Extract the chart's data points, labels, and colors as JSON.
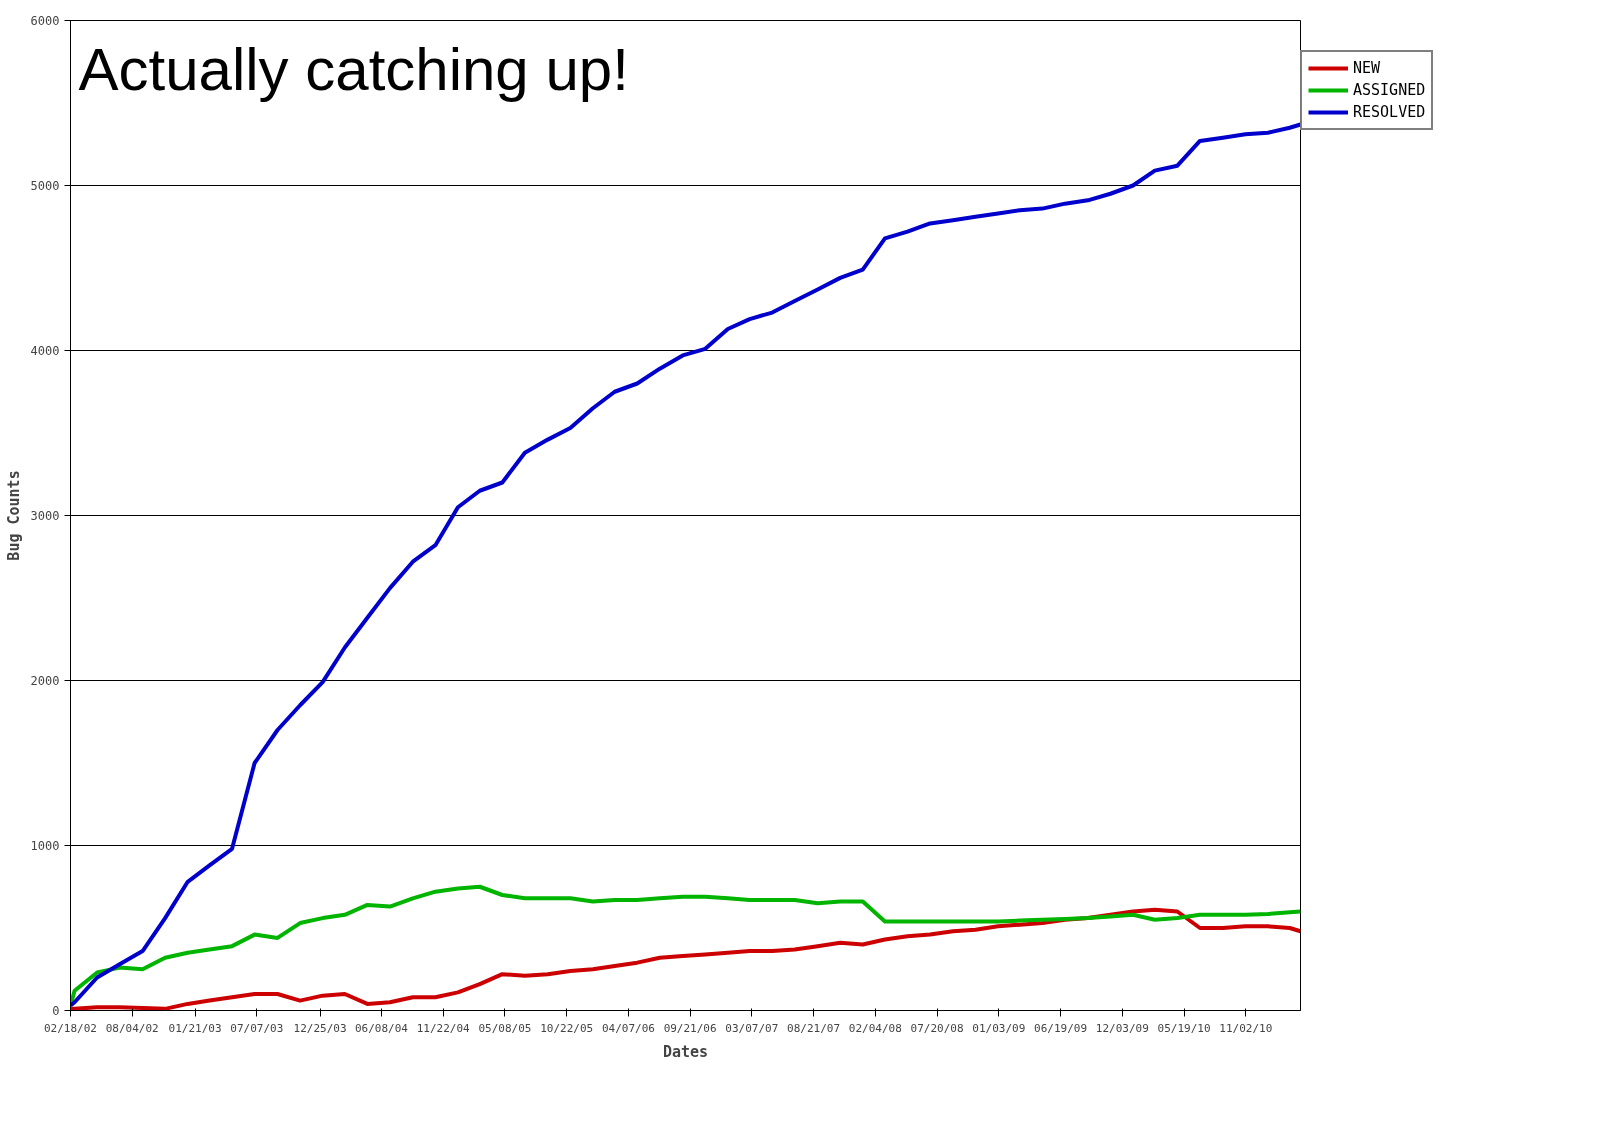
{
  "chart_data": {
    "type": "line",
    "annotations": [
      "Actually catching up!"
    ],
    "xlabel": "Dates",
    "ylabel": "Bug Counts",
    "x": [
      "2002-02-18",
      "2002-03",
      "2002-05",
      "2002-07",
      "2002-09",
      "2002-11",
      "2003-01",
      "2003-03",
      "2003-05",
      "2003-07",
      "2003-09",
      "2003-11",
      "2004-01",
      "2004-03",
      "2004-05",
      "2004-07",
      "2004-09",
      "2004-11",
      "2005-01",
      "2005-03",
      "2005-05",
      "2005-07",
      "2005-09",
      "2005-11",
      "2006-01",
      "2006-03",
      "2006-05",
      "2006-07",
      "2006-09",
      "2006-11",
      "2007-01",
      "2007-03",
      "2007-05",
      "2007-07",
      "2007-09",
      "2007-11",
      "2008-01",
      "2008-03",
      "2008-05",
      "2008-07",
      "2008-09",
      "2008-11",
      "2009-01",
      "2009-03",
      "2009-05",
      "2009-07",
      "2009-09",
      "2009-11",
      "2010-01",
      "2010-03",
      "2010-05",
      "2010-07",
      "2010-09",
      "2010-11",
      "2011-01",
      "2011-03",
      "2011-03-30"
    ],
    "series": [
      {
        "name": "NEW",
        "color": "#cc0000",
        "values": [
          10,
          10,
          20,
          20,
          15,
          10,
          40,
          60,
          80,
          100,
          100,
          60,
          90,
          100,
          40,
          50,
          80,
          80,
          110,
          160,
          220,
          210,
          220,
          240,
          250,
          270,
          290,
          320,
          330,
          340,
          350,
          360,
          360,
          370,
          390,
          410,
          400,
          430,
          450,
          460,
          480,
          490,
          510,
          520,
          530,
          550,
          560,
          580,
          600,
          610,
          600,
          500,
          500,
          510,
          510,
          500,
          480
        ]
      },
      {
        "name": "ASSIGNED",
        "color": "#00b400",
        "values": [
          30,
          120,
          230,
          260,
          250,
          320,
          350,
          370,
          390,
          460,
          440,
          530,
          560,
          580,
          640,
          630,
          680,
          720,
          740,
          750,
          700,
          680,
          680,
          680,
          660,
          670,
          670,
          680,
          690,
          690,
          680,
          670,
          670,
          670,
          650,
          660,
          660,
          540,
          540,
          540,
          540,
          540,
          540,
          545,
          550,
          555,
          560,
          570,
          580,
          550,
          560,
          580,
          580,
          580,
          585,
          595,
          600
        ]
      },
      {
        "name": "RESOLVED",
        "color": "#0000cc",
        "values": [
          30,
          50,
          200,
          280,
          360,
          560,
          780,
          880,
          980,
          1500,
          1700,
          1850,
          1990,
          2200,
          2380,
          2560,
          2720,
          2820,
          3050,
          3150,
          3200,
          3380,
          3460,
          3530,
          3650,
          3750,
          3800,
          3890,
          3970,
          4010,
          4130,
          4190,
          4230,
          4300,
          4370,
          4440,
          4490,
          4680,
          4720,
          4770,
          4790,
          4810,
          4830,
          4850,
          4860,
          4890,
          4910,
          4950,
          5000,
          5090,
          5120,
          5270,
          5290,
          5310,
          5320,
          5350,
          5370
        ]
      }
    ],
    "xlim": [
      "2002-02-18",
      "2011-03-30"
    ],
    "xticks": [
      {
        "value": "2002-02-18",
        "label": "02/18/02"
      },
      {
        "value": "2002-08-04",
        "label": "08/04/02"
      },
      {
        "value": "2003-01-21",
        "label": "01/21/03"
      },
      {
        "value": "2003-07-07",
        "label": "07/07/03"
      },
      {
        "value": "2003-12-25",
        "label": "12/25/03"
      },
      {
        "value": "2004-06-08",
        "label": "06/08/04"
      },
      {
        "value": "2004-11-22",
        "label": "11/22/04"
      },
      {
        "value": "2005-05-08",
        "label": "05/08/05"
      },
      {
        "value": "2005-10-22",
        "label": "10/22/05"
      },
      {
        "value": "2006-04-07",
        "label": "04/07/06"
      },
      {
        "value": "2006-09-21",
        "label": "09/21/06"
      },
      {
        "value": "2007-03-07",
        "label": "03/07/07"
      },
      {
        "value": "2007-08-21",
        "label": "08/21/07"
      },
      {
        "value": "2008-02-04",
        "label": "02/04/08"
      },
      {
        "value": "2008-07-20",
        "label": "07/20/08"
      },
      {
        "value": "2009-01-03",
        "label": "01/03/09"
      },
      {
        "value": "2009-06-19",
        "label": "06/19/09"
      },
      {
        "value": "2009-12-03",
        "label": "12/03/09"
      },
      {
        "value": "2010-05-19",
        "label": "05/19/10"
      },
      {
        "value": "2010-11-02",
        "label": "11/02/10"
      }
    ],
    "ylim": [
      0,
      6000
    ],
    "yticks": [
      0,
      1000,
      2000,
      3000,
      4000,
      5000,
      6000
    ],
    "grid": "y",
    "legend": "top right",
    "marker": "none",
    "line_style": "solid"
  }
}
